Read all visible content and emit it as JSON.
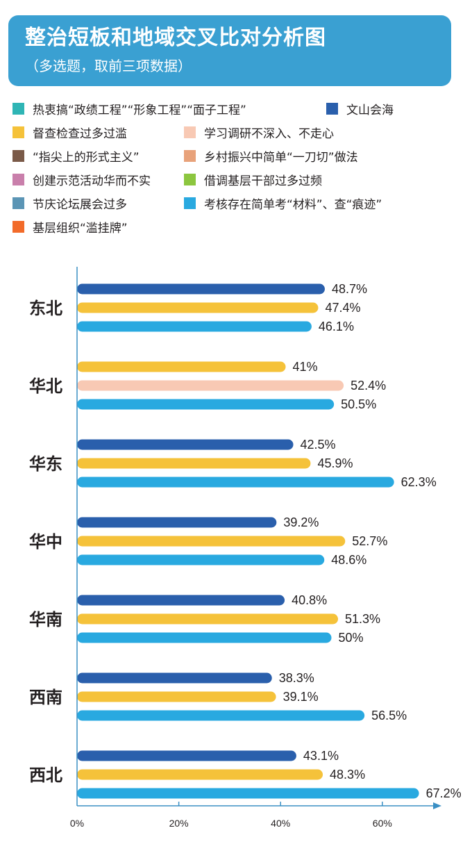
{
  "header": {
    "title": "整治短板和地域交叉比对分析图",
    "subtitle": "（多选题，取前三项数据）"
  },
  "legend": [
    {
      "label": "热衷搞“政绩工程”“形象工程”“面子工程”",
      "color": "#2fb5b5"
    },
    {
      "label": "文山会海",
      "color": "#2a5fac"
    },
    {
      "label": "督查检查过多过滥",
      "color": "#f5c23a"
    },
    {
      "label": "学习调研不深入、不走心",
      "color": "#f8c9b4"
    },
    {
      "label": "“指尖上的形式主义”",
      "color": "#7a5a48"
    },
    {
      "label": "乡村振兴中简单“一刀切”做法",
      "color": "#e8a27a"
    },
    {
      "label": "创建示范活动华而不实",
      "color": "#c97fab"
    },
    {
      "label": "借调基层干部过多过频",
      "color": "#8cc63f"
    },
    {
      "label": "节庆论坛展会过多",
      "color": "#5b95b5"
    },
    {
      "label": "考核存在简单考“材料”、查“痕迹”",
      "color": "#29a9e0"
    },
    {
      "label": "基层组织“滥挂牌”",
      "color": "#f26b2a"
    }
  ],
  "chart_data": {
    "type": "bar",
    "orientation": "horizontal",
    "title": "整治短板和地域交叉比对分析图",
    "subtitle": "（多选题，取前三项数据）",
    "xlim": [
      0,
      70
    ],
    "x_ticks": [
      "0%",
      "20%",
      "40%",
      "60%"
    ],
    "x_tick_values": [
      0,
      20,
      40,
      60
    ],
    "grid": false,
    "legend_position": "top",
    "categories": [
      "东北",
      "华北",
      "华东",
      "华中",
      "华南",
      "西南",
      "西北"
    ],
    "groups": [
      {
        "region": "东北",
        "bars": [
          {
            "item": "文山会海",
            "value": 48.7,
            "label": "48.7%",
            "color": "#2a5fac"
          },
          {
            "item": "督查检查过多过滥",
            "value": 47.4,
            "label": "47.4%",
            "color": "#f5c23a"
          },
          {
            "item": "考核存在简单考“材料”、查“痕迹”",
            "value": 46.1,
            "label": "46.1%",
            "color": "#29a9e0"
          }
        ]
      },
      {
        "region": "华北",
        "bars": [
          {
            "item": "督查检查过多过滥",
            "value": 41,
            "label": "41%",
            "color": "#f5c23a"
          },
          {
            "item": "学习调研不深入、不走心",
            "value": 52.4,
            "label": "52.4%",
            "color": "#f8c9b4"
          },
          {
            "item": "考核存在简单考“材料”、查“痕迹”",
            "value": 50.5,
            "label": "50.5%",
            "color": "#29a9e0"
          }
        ]
      },
      {
        "region": "华东",
        "bars": [
          {
            "item": "文山会海",
            "value": 42.5,
            "label": "42.5%",
            "color": "#2a5fac"
          },
          {
            "item": "督查检查过多过滥",
            "value": 45.9,
            "label": "45.9%",
            "color": "#f5c23a"
          },
          {
            "item": "考核存在简单考“材料”、查“痕迹”",
            "value": 62.3,
            "label": "62.3%",
            "color": "#29a9e0"
          }
        ]
      },
      {
        "region": "华中",
        "bars": [
          {
            "item": "文山会海",
            "value": 39.2,
            "label": "39.2%",
            "color": "#2a5fac"
          },
          {
            "item": "督查检查过多过滥",
            "value": 52.7,
            "label": "52.7%",
            "color": "#f5c23a"
          },
          {
            "item": "考核存在简单考“材料”、查“痕迹”",
            "value": 48.6,
            "label": "48.6%",
            "color": "#29a9e0"
          }
        ]
      },
      {
        "region": "华南",
        "bars": [
          {
            "item": "文山会海",
            "value": 40.8,
            "label": "40.8%",
            "color": "#2a5fac"
          },
          {
            "item": "督查检查过多过滥",
            "value": 51.3,
            "label": "51.3%",
            "color": "#f5c23a"
          },
          {
            "item": "考核存在简单考“材料”、查“痕迹”",
            "value": 50,
            "label": "50%",
            "color": "#29a9e0"
          }
        ]
      },
      {
        "region": "西南",
        "bars": [
          {
            "item": "文山会海",
            "value": 38.3,
            "label": "38.3%",
            "color": "#2a5fac"
          },
          {
            "item": "督查检查过多过滥",
            "value": 39.1,
            "label": "39.1%",
            "color": "#f5c23a"
          },
          {
            "item": "考核存在简单考“材料”、查“痕迹”",
            "value": 56.5,
            "label": "56.5%",
            "color": "#29a9e0"
          }
        ]
      },
      {
        "region": "西北",
        "bars": [
          {
            "item": "文山会海",
            "value": 43.1,
            "label": "43.1%",
            "color": "#2a5fac"
          },
          {
            "item": "督查检查过多过滥",
            "value": 48.3,
            "label": "48.3%",
            "color": "#f5c23a"
          },
          {
            "item": "考核存在简单考“材料”、查“痕迹”",
            "value": 67.2,
            "label": "67.2%",
            "color": "#29a9e0"
          }
        ]
      }
    ],
    "axis_color": "#3a8fc4"
  }
}
